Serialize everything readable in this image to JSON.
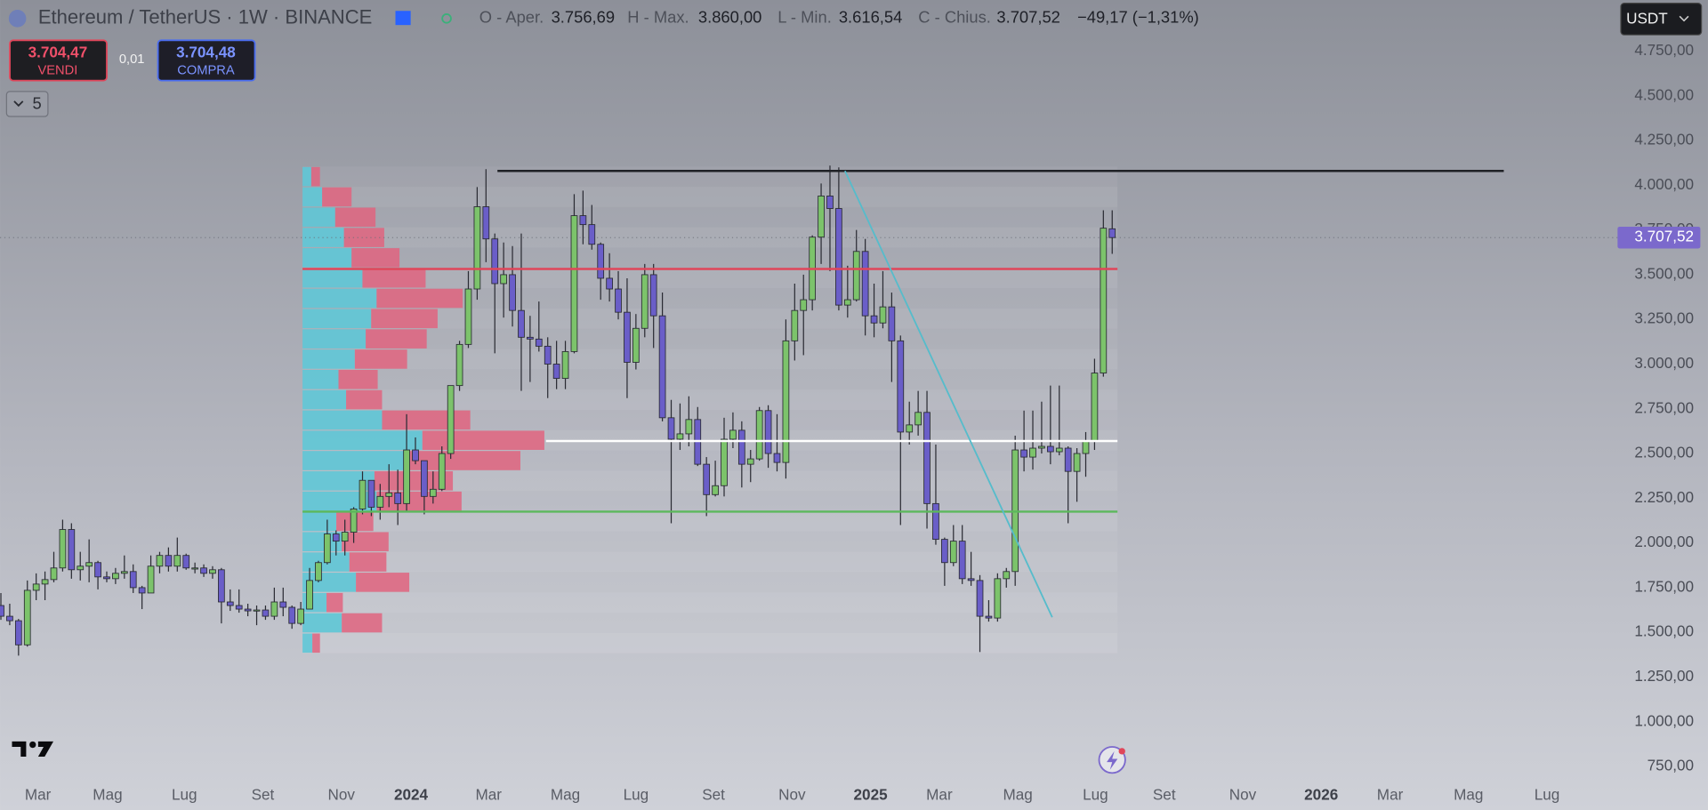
{
  "header": {
    "symbol": "Ethereum / TetherUS · 1W · BINANCE",
    "o_label": "O - Aper.",
    "o_value": "3.756,69",
    "h_label": "H - Max.",
    "h_value": "3.860,00",
    "l_label": "L - Min.",
    "l_value": "3.616,54",
    "c_label": "C - Chius.",
    "c_value": "3.707,52",
    "change": "−49,17 (−1,31%)"
  },
  "trade": {
    "sell_price": "3.704,47",
    "sell_label": "VENDI",
    "spread": "0,01",
    "buy_price": "3.704,48",
    "buy_label": "COMPRA",
    "indicators_count": "5",
    "currency": "USDT"
  },
  "chart_data": {
    "type": "candlestick",
    "open": [
      1650,
      1590,
      1565,
      1430,
      1735,
      1770,
      1795,
      1860,
      2075,
      1850,
      1870,
      1890,
      1810,
      1800,
      1830,
      1840,
      1750,
      1720,
      1870,
      1930,
      1870,
      1930,
      1860,
      1860,
      1830,
      1850,
      1670,
      1650,
      1630,
      1620,
      1625,
      1590,
      1670,
      1640,
      1550,
      1630,
      1790,
      1890,
      2050,
      2010,
      2060,
      2190,
      2350,
      2200,
      2260,
      2280,
      2220,
      2520,
      2460,
      2260,
      2300,
      2500,
      2880,
      3110,
      3420,
      3880,
      3700,
      3450,
      3500,
      3300,
      3150,
      3140,
      3100,
      3000,
      2920,
      3070,
      3830,
      3780,
      3670,
      3480,
      3420,
      3290,
      3010,
      3200,
      3500,
      3270,
      2700,
      2580,
      2610,
      2690,
      2440,
      2270,
      2320,
      2580,
      2630,
      2440,
      2470,
      2740,
      2500,
      2450,
      3130,
      3300,
      3360,
      3710,
      3940,
      3870,
      3330,
      3360,
      3630,
      3270,
      3230,
      3320,
      3130,
      2620,
      2660,
      2730,
      2220,
      2020,
      1890,
      2010,
      1800,
      1790,
      1590,
      1580,
      1800,
      1840,
      2520,
      2480,
      2530,
      2540,
      2510,
      2530,
      2400,
      2500,
      2570,
      2950,
      3756.69
    ],
    "high": [
      1720,
      1660,
      1575,
      1790,
      1830,
      1840,
      1950,
      2130,
      2110,
      1950,
      2020,
      1900,
      1840,
      1860,
      1930,
      1880,
      1760,
      1930,
      1950,
      1975,
      2030,
      1940,
      1890,
      1880,
      1870,
      1860,
      1740,
      1740,
      1660,
      1650,
      1650,
      1750,
      1750,
      1650,
      1670,
      1860,
      1900,
      2130,
      2070,
      2130,
      2200,
      2400,
      2350,
      2330,
      2440,
      2410,
      2720,
      2590,
      2460,
      2400,
      2540,
      2880,
      3130,
      3520,
      3990,
      4090,
      3730,
      3680,
      3660,
      3730,
      3270,
      3350,
      3150,
      3130,
      3130,
      3950,
      3970,
      3890,
      3680,
      3620,
      3520,
      3480,
      3280,
      3560,
      3560,
      3400,
      2800,
      2780,
      2820,
      2760,
      2480,
      2460,
      2700,
      2730,
      2680,
      2520,
      2760,
      2770,
      2720,
      3250,
      3450,
      3500,
      3720,
      4010,
      4110,
      4100,
      3550,
      3750,
      3700,
      3450,
      3520,
      3400,
      3160,
      2790,
      2850,
      2850,
      2550,
      2030,
      2100,
      2100,
      1950,
      1820,
      1680,
      1830,
      1860,
      2600,
      2740,
      2740,
      2790,
      2880,
      2880,
      2540,
      2530,
      2620,
      3030,
      3860,
      3860
    ],
    "low": [
      1570,
      1540,
      1370,
      1420,
      1680,
      1680,
      1780,
      1840,
      1800,
      1790,
      1780,
      1740,
      1780,
      1770,
      1800,
      1720,
      1630,
      1720,
      1830,
      1840,
      1840,
      1850,
      1830,
      1810,
      1800,
      1550,
      1620,
      1610,
      1590,
      1540,
      1570,
      1570,
      1590,
      1520,
      1540,
      1630,
      1780,
      1880,
      1930,
      1930,
      2000,
      2160,
      2150,
      2130,
      2200,
      2100,
      2170,
      2440,
      2160,
      2220,
      2290,
      2470,
      2850,
      3090,
      3360,
      3570,
      3060,
      3260,
      3210,
      2850,
      2900,
      3070,
      2810,
      2860,
      2860,
      3060,
      3670,
      3640,
      3360,
      3350,
      3250,
      2810,
      2970,
      3150,
      3090,
      2680,
      2110,
      2520,
      2540,
      2430,
      2150,
      2260,
      2260,
      2530,
      2310,
      2340,
      2460,
      2420,
      2400,
      2360,
      3020,
      3050,
      3300,
      3560,
      3520,
      3300,
      3260,
      3350,
      3160,
      3150,
      3200,
      2900,
      2100,
      2550,
      2600,
      2080,
      1990,
      1760,
      1870,
      1770,
      1760,
      1390,
      1560,
      1560,
      1750,
      1760,
      2400,
      2410,
      2500,
      2440,
      2490,
      2110,
      2230,
      2370,
      2520,
      2930,
      3616.54
    ],
    "close": [
      1590,
      1565,
      1430,
      1735,
      1770,
      1795,
      1860,
      2075,
      1850,
      1870,
      1890,
      1810,
      1800,
      1830,
      1840,
      1750,
      1720,
      1870,
      1930,
      1870,
      1930,
      1860,
      1860,
      1830,
      1850,
      1670,
      1650,
      1630,
      1620,
      1625,
      1590,
      1670,
      1640,
      1550,
      1630,
      1790,
      1890,
      2050,
      2010,
      2060,
      2190,
      2350,
      2200,
      2260,
      2280,
      2220,
      2520,
      2460,
      2260,
      2300,
      2500,
      2880,
      3110,
      3420,
      3880,
      3700,
      3450,
      3500,
      3300,
      3150,
      3140,
      3100,
      3000,
      2920,
      3070,
      3830,
      3780,
      3670,
      3480,
      3420,
      3290,
      3010,
      3200,
      3500,
      3270,
      2700,
      2580,
      2610,
      2690,
      2440,
      2270,
      2320,
      2580,
      2630,
      2440,
      2470,
      2740,
      2500,
      2450,
      3130,
      3300,
      3360,
      3710,
      3940,
      3870,
      3330,
      3360,
      3630,
      3270,
      3230,
      3320,
      3130,
      2620,
      2660,
      2730,
      2220,
      2020,
      1890,
      2010,
      1800,
      1790,
      1590,
      1580,
      1800,
      1840,
      2520,
      2480,
      2530,
      2540,
      2510,
      2530,
      2400,
      2500,
      2570,
      2950,
      3760,
      3707.52
    ],
    "up_color": "#7cc36b",
    "down_color": "#6a5ec8",
    "last_price_label": "3.707,52",
    "last_price_color": "#7b69cc",
    "xlim": [
      -0.1,
      183.3
    ],
    "xticks": [
      {
        "value": 4.2,
        "label": "Mar"
      },
      {
        "value": 12.1,
        "label": "Mag"
      },
      {
        "value": 20.8,
        "label": "Lug"
      },
      {
        "value": 29.7,
        "label": "Set"
      },
      {
        "value": 38.6,
        "label": "Nov"
      },
      {
        "value": 46.5,
        "label": "2024"
      },
      {
        "value": 55.3,
        "label": "Mar"
      },
      {
        "value": 64.0,
        "label": "Mag"
      },
      {
        "value": 72.0,
        "label": "Lug"
      },
      {
        "value": 80.8,
        "label": "Set"
      },
      {
        "value": 89.7,
        "label": "Nov"
      },
      {
        "value": 98.6,
        "label": "2025"
      },
      {
        "value": 106.4,
        "label": "Mar"
      },
      {
        "value": 115.3,
        "label": "Mag"
      },
      {
        "value": 124.1,
        "label": "Lug"
      },
      {
        "value": 131.9,
        "label": "Set"
      },
      {
        "value": 140.8,
        "label": "Nov"
      },
      {
        "value": 149.7,
        "label": "2026"
      },
      {
        "value": 157.5,
        "label": "Mar"
      },
      {
        "value": 166.4,
        "label": "Mag"
      },
      {
        "value": 175.3,
        "label": "Lug"
      }
    ],
    "ylim": [
      677,
      5036
    ],
    "yticks": [
      {
        "value": 750,
        "label": "750,00"
      },
      {
        "value": 1000,
        "label": "1.000,00"
      },
      {
        "value": 1250,
        "label": "1.250,00"
      },
      {
        "value": 1500,
        "label": "1.500,00"
      },
      {
        "value": 1750,
        "label": "1.750,00"
      },
      {
        "value": 2000,
        "label": "2.000,00"
      },
      {
        "value": 2250,
        "label": "2.250,00"
      },
      {
        "value": 2500,
        "label": "2.500,00"
      },
      {
        "value": 2750,
        "label": "2.750,00"
      },
      {
        "value": 3000,
        "label": "3.000,00"
      },
      {
        "value": 3250,
        "label": "3.250,00"
      },
      {
        "value": 3500,
        "label": "3.500,00"
      },
      {
        "value": 3750,
        "label": "3.750,00"
      },
      {
        "value": 4000,
        "label": "4.000,00"
      },
      {
        "value": 4250,
        "label": "4.250,00"
      },
      {
        "value": 4500,
        "label": "4.500,00"
      },
      {
        "value": 4750,
        "label": "4.750,00"
      }
    ],
    "volume_profile": {
      "price_range": [
        1383,
        4105
      ],
      "x_start": 34.2,
      "x_end": 126.6,
      "buy_color": "#5fc6d6",
      "sell_color": "#e0647f",
      "buy": [
        8,
        18,
        30,
        38,
        45,
        55,
        68,
        63,
        58,
        48,
        33,
        40,
        73,
        110,
        97,
        66,
        68,
        31,
        36,
        43,
        49,
        22,
        36,
        9
      ],
      "sell": [
        8,
        27,
        37,
        37,
        44,
        58,
        79,
        61,
        56,
        48,
        36,
        33,
        81,
        112,
        103,
        72,
        78,
        34,
        43,
        34,
        49,
        15,
        37,
        7
      ]
    },
    "levels": [
      {
        "price": 4080,
        "from": 56.3,
        "to": 170.4,
        "color": "#1f2126"
      },
      {
        "price": 3532,
        "from": 34.2,
        "to": 126.6,
        "color": "#e0465a"
      },
      {
        "price": 2570,
        "from": 61.8,
        "to": 126.6,
        "color": "#ffffff"
      },
      {
        "price": 2175,
        "from": 34.2,
        "to": 126.6,
        "color": "#5cb85c"
      }
    ],
    "trendline": {
      "from": [
        95.7,
        4080
      ],
      "to": [
        119.2,
        1584
      ],
      "color": "#56bccb"
    }
  }
}
